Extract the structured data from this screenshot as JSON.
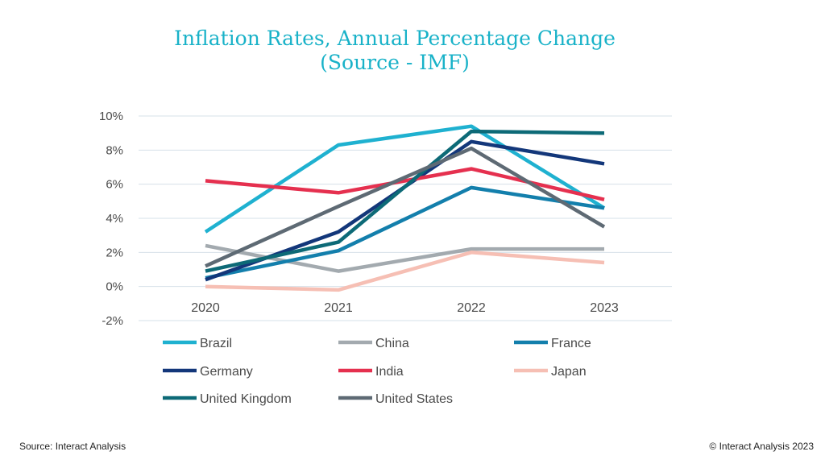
{
  "footer": {
    "source": "Source: Interact Analysis",
    "copyright": "© Interact Analysis 2023"
  },
  "chart_data": {
    "type": "line",
    "title": [
      "Inflation Rates, Annual Percentage Change",
      "(Source - IMF)"
    ],
    "x": [
      "2020",
      "2021",
      "2022",
      "2023"
    ],
    "ylim": [
      -2,
      10
    ],
    "yticks": [
      10,
      8,
      6,
      4,
      2,
      0,
      -2
    ],
    "ytick_labels": [
      "10%",
      "8%",
      "6%",
      "4%",
      "2%",
      "0%",
      "-2%"
    ],
    "grid": true,
    "legend_position": "bottom",
    "series": [
      {
        "name": "Brazil",
        "color": "#1fb1d0",
        "values": [
          3.2,
          8.3,
          9.4,
          4.6
        ]
      },
      {
        "name": "China",
        "color": "#a3aaaf",
        "values": [
          2.4,
          0.9,
          2.2,
          2.2
        ]
      },
      {
        "name": "France",
        "color": "#137fac",
        "values": [
          0.5,
          2.1,
          5.8,
          4.6
        ]
      },
      {
        "name": "Germany",
        "color": "#13377a",
        "values": [
          0.4,
          3.2,
          8.5,
          7.2
        ]
      },
      {
        "name": "India",
        "color": "#e5304f",
        "values": [
          6.2,
          5.5,
          6.9,
          5.1
        ]
      },
      {
        "name": "Japan",
        "color": "#f6bfb4",
        "values": [
          0.0,
          -0.2,
          2.0,
          1.4
        ]
      },
      {
        "name": "United Kingdom",
        "color": "#0d6a77",
        "values": [
          0.9,
          2.6,
          9.1,
          9.0
        ]
      },
      {
        "name": "United States",
        "color": "#5e6a74",
        "values": [
          1.2,
          4.7,
          8.1,
          3.5
        ]
      }
    ]
  }
}
